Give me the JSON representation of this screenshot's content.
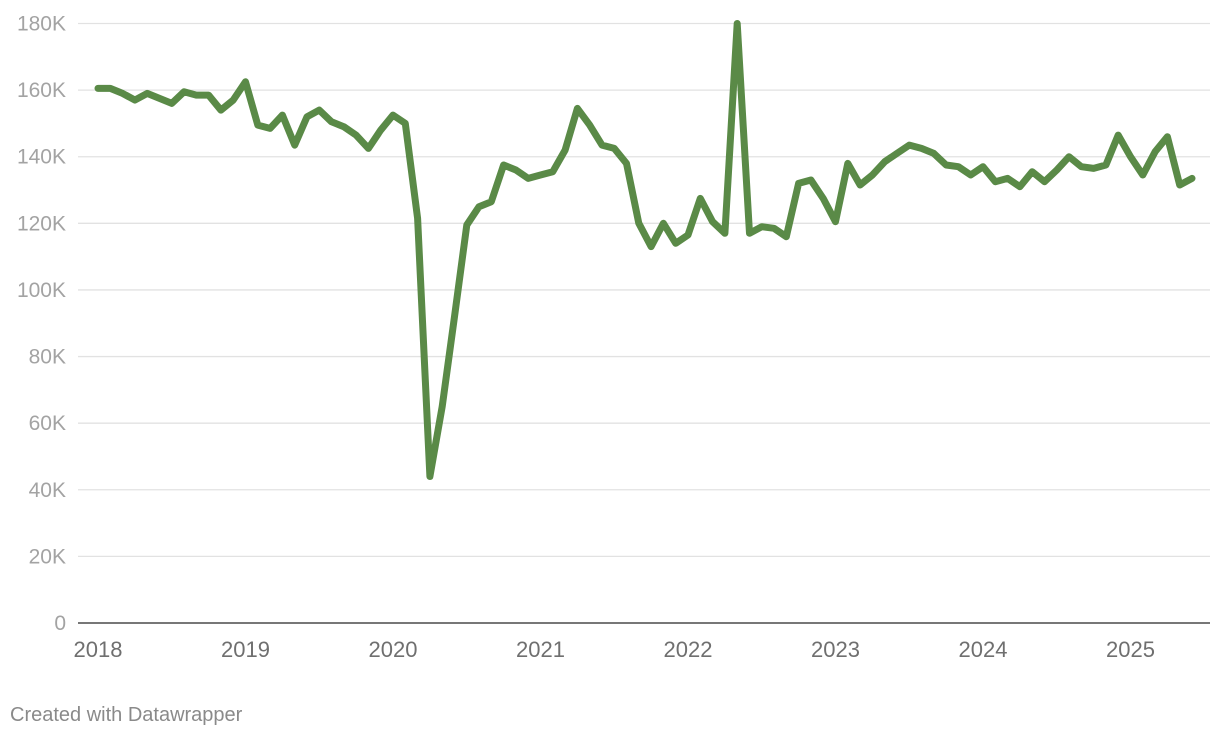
{
  "chart_data": {
    "type": "line",
    "title": "",
    "xlabel": "",
    "ylabel": "",
    "y_ticks": [
      0,
      20000,
      40000,
      60000,
      80000,
      100000,
      120000,
      140000,
      160000,
      180000
    ],
    "y_tick_labels": [
      "0",
      "20K",
      "40K",
      "60K",
      "80K",
      "100K",
      "120K",
      "140K",
      "160K",
      "180K"
    ],
    "x_ticks": [
      2018,
      2019,
      2020,
      2021,
      2022,
      2023,
      2024,
      2025
    ],
    "x_tick_labels": [
      "2018",
      "2019",
      "2020",
      "2021",
      "2022",
      "2023",
      "2024",
      "2025"
    ],
    "ylim": [
      0,
      180000
    ],
    "grid": true,
    "colors": {
      "line": "#5a8a47"
    },
    "series": [
      {
        "x": [
          "2018-01",
          "2018-02",
          "2018-03",
          "2018-04",
          "2018-05",
          "2018-06",
          "2018-07",
          "2018-08",
          "2018-09",
          "2018-10",
          "2018-11",
          "2018-12",
          "2019-01",
          "2019-02",
          "2019-03",
          "2019-04",
          "2019-05",
          "2019-06",
          "2019-07",
          "2019-08",
          "2019-09",
          "2019-10",
          "2019-11",
          "2019-12",
          "2020-01",
          "2020-02",
          "2020-03",
          "2020-04",
          "2020-05",
          "2020-06",
          "2020-07",
          "2020-08",
          "2020-09",
          "2020-10",
          "2020-11",
          "2020-12",
          "2021-01",
          "2021-02",
          "2021-03",
          "2021-04",
          "2021-05",
          "2021-06",
          "2021-07",
          "2021-08",
          "2021-09",
          "2021-10",
          "2021-11",
          "2021-12",
          "2022-01",
          "2022-02",
          "2022-03",
          "2022-04",
          "2022-05",
          "2022-06",
          "2022-07",
          "2022-08",
          "2022-09",
          "2022-10",
          "2022-11",
          "2022-12",
          "2023-01",
          "2023-02",
          "2023-03",
          "2023-04",
          "2023-05",
          "2023-06",
          "2023-07",
          "2023-08",
          "2023-09",
          "2023-10",
          "2023-11",
          "2023-12",
          "2024-01",
          "2024-02",
          "2024-03",
          "2024-04",
          "2024-05",
          "2024-06",
          "2024-07",
          "2024-08",
          "2024-09",
          "2024-10",
          "2024-11",
          "2024-12",
          "2025-01",
          "2025-02",
          "2025-03",
          "2025-04",
          "2025-05",
          "2025-06"
        ],
        "values": [
          160500,
          160500,
          159000,
          157000,
          159000,
          157500,
          156000,
          159500,
          158500,
          158500,
          154000,
          157000,
          162500,
          149500,
          148500,
          152500,
          143500,
          152000,
          154000,
          150500,
          149000,
          146500,
          142500,
          148000,
          152500,
          150000,
          121500,
          44000,
          65000,
          92000,
          119500,
          125000,
          126500,
          137500,
          136000,
          133500,
          134500,
          135500,
          142000,
          154500,
          149500,
          143500,
          142500,
          138000,
          120000,
          113000,
          120000,
          114000,
          116500,
          127500,
          120500,
          117000,
          180000,
          117000,
          119000,
          118500,
          116000,
          132000,
          133000,
          127500,
          120500,
          138000,
          131500,
          134500,
          138500,
          141000,
          143500,
          142500,
          141000,
          137500,
          137000,
          134500,
          137000,
          132500,
          133500,
          131000,
          135500,
          132500,
          136000,
          140000,
          137000,
          136500,
          137500,
          146500,
          140000,
          134500,
          141500,
          146000,
          131500,
          133500
        ]
      }
    ]
  },
  "footer": {
    "credit": "Created with Datawrapper"
  }
}
